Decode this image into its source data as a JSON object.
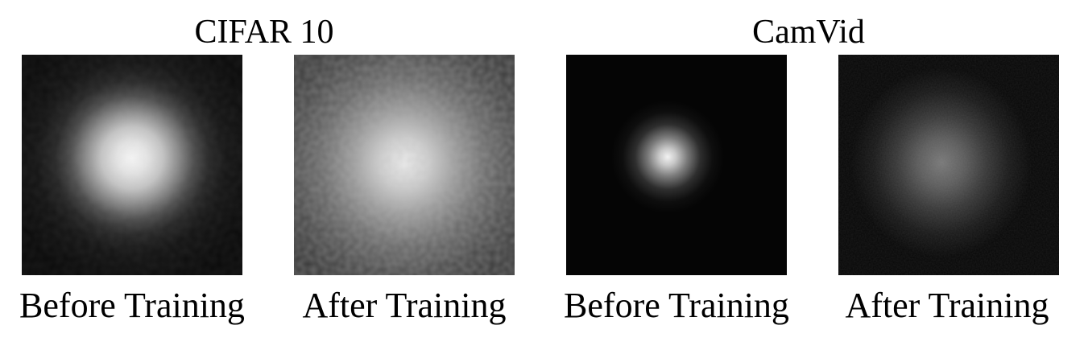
{
  "groups": [
    {
      "title": "CIFAR 10",
      "panels": [
        {
          "caption": "Before Training"
        },
        {
          "caption": "After Training"
        }
      ]
    },
    {
      "title": "CamVid",
      "panels": [
        {
          "caption": "Before Training"
        },
        {
          "caption": "After Training"
        }
      ]
    }
  ]
}
